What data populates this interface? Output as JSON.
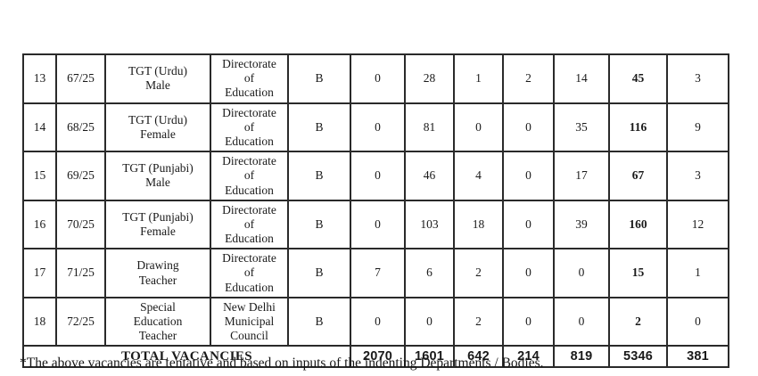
{
  "rows": [
    {
      "sno": "13",
      "code": "67/25",
      "post": "TGT (Urdu)\nMale",
      "department": "Directorate\nof\nEducation",
      "category": "B",
      "values": [
        "0",
        "28",
        "1",
        "2",
        "14",
        "45",
        "3"
      ]
    },
    {
      "sno": "14",
      "code": "68/25",
      "post": "TGT (Urdu)\nFemale",
      "department": "Directorate\nof\nEducation",
      "category": "B",
      "values": [
        "0",
        "81",
        "0",
        "0",
        "35",
        "116",
        "9"
      ]
    },
    {
      "sno": "15",
      "code": "69/25",
      "post": "TGT (Punjabi)\nMale",
      "department": "Directorate\nof\nEducation",
      "category": "B",
      "values": [
        "0",
        "46",
        "4",
        "0",
        "17",
        "67",
        "3"
      ]
    },
    {
      "sno": "16",
      "code": "70/25",
      "post": "TGT (Punjabi)\nFemale",
      "department": "Directorate\nof\nEducation",
      "category": "B",
      "values": [
        "0",
        "103",
        "18",
        "0",
        "39",
        "160",
        "12"
      ]
    },
    {
      "sno": "17",
      "code": "71/25",
      "post": "Drawing\nTeacher",
      "department": "Directorate\nof\nEducation",
      "category": "B",
      "values": [
        "7",
        "6",
        "2",
        "0",
        "0",
        "15",
        "1"
      ]
    },
    {
      "sno": "18",
      "code": "72/25",
      "post": "Special\nEducation\nTeacher",
      "department": "New Delhi\nMunicipal\nCouncil",
      "category": "B",
      "values": [
        "0",
        "0",
        "2",
        "0",
        "0",
        "2",
        "0"
      ]
    }
  ],
  "total_row": {
    "label": "TOTAL VACANCIES",
    "values": [
      "2070",
      "1601",
      "642",
      "214",
      "819",
      "5346",
      "381"
    ]
  },
  "footnote": "*The above vacancies are tentative and based on inputs of the indenting Departments / Bodies."
}
